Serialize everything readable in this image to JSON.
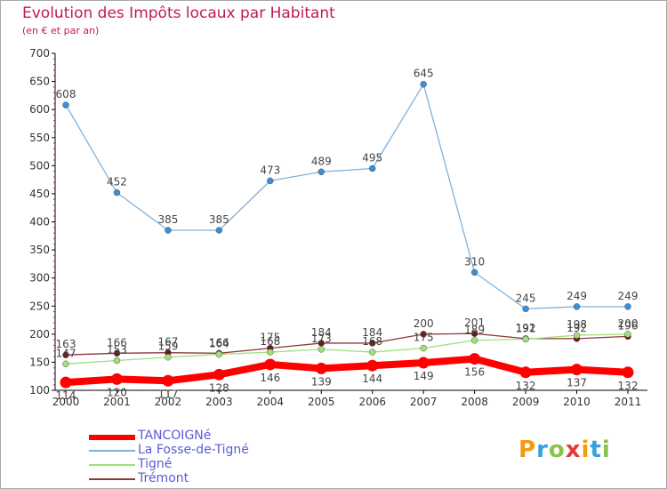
{
  "chart_data": {
    "type": "line",
    "title": "Evolution des Impôts locaux par Habitant",
    "subtitle": "(en € et par an)",
    "xlabel": "",
    "ylabel": "",
    "ylim": [
      100,
      700
    ],
    "yticks": [
      100,
      150,
      200,
      250,
      300,
      350,
      400,
      450,
      500,
      550,
      600,
      650,
      700
    ],
    "categories": [
      "2000",
      "2001",
      "2002",
      "2003",
      "2004",
      "2005",
      "2006",
      "2007",
      "2008",
      "2009",
      "2010",
      "2011"
    ],
    "series": [
      {
        "name": "La Fosse-de-Tigné",
        "color": "#3b8fd4",
        "line": "#7fb2dd",
        "values": [
          608,
          452,
          385,
          385,
          473,
          489,
          495,
          645,
          310,
          245,
          249,
          249
        ]
      },
      {
        "name": "Trémont",
        "color": "#6b1a1a",
        "line": "#8c3a3a",
        "values": [
          163,
          166,
          167,
          166,
          175,
          184,
          184,
          200,
          201,
          192,
          192,
          196
        ]
      },
      {
        "name": "Tigné",
        "color": "#9ee07a",
        "line": "#9ee07a",
        "values": [
          147,
          153,
          159,
          164,
          168,
          173,
          168,
          175,
          189,
          191,
          198,
          200
        ]
      },
      {
        "name": "TANCOIGNé",
        "color": "#ff0000",
        "line": "#ff0000",
        "values": [
          114,
          120,
          117,
          128,
          146,
          139,
          144,
          149,
          156,
          132,
          137,
          132
        ]
      }
    ],
    "legend": [
      "TANCOIGNé",
      "La Fosse-de-Tigné",
      "Tigné",
      "Trémont"
    ],
    "legend_position": "bottom-left",
    "grid": false
  },
  "brand": {
    "letters": [
      "P",
      "r",
      "o",
      "x",
      "i",
      "t",
      "i"
    ]
  }
}
